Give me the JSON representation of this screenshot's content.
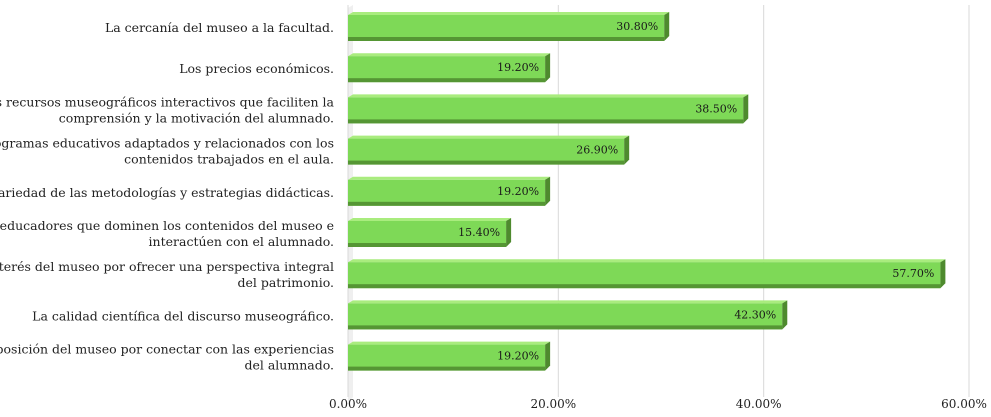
{
  "chart_data": {
    "type": "bar",
    "orientation": "horizontal",
    "title": "",
    "xlabel": "",
    "ylabel": "",
    "xlim": [
      0,
      60
    ],
    "ticks": [
      0,
      20,
      40,
      60
    ],
    "tick_labels": [
      "0.00%",
      "20.00%",
      "40.00%",
      "60.00%"
    ],
    "grid": true,
    "legend": "none",
    "colors": {
      "bar_face": "#7ed957",
      "bar_top": "#a9ec7e",
      "bar_shadow": "#4e8a2e",
      "gridline": "#d9d9d9"
    },
    "categories": [
      [
        "La cercanía del museo a la facultad."
      ],
      [
        "Los precios económicos."
      ],
      [
        "Los recursos museográficos interactivos que faciliten la",
        "comprensión y la motivación del alumnado."
      ],
      [
        "Los programas educativos adaptados y relacionados con los",
        "contenidos trabajados en el aula."
      ],
      [
        "La variedad de las metodologías y estrategias didácticas."
      ],
      [
        "Los educadores que dominen los contenidos del museo e",
        "interactúen con el alumnado."
      ],
      [
        "El interés del museo por ofrecer una perspectiva integral",
        "del patrimonio."
      ],
      [
        "La calidad científica del discurso museográfico."
      ],
      [
        "La disposición del museo por conectar con las experiencias",
        "del alumnado."
      ]
    ],
    "values": [
      30.8,
      19.2,
      38.5,
      26.9,
      19.2,
      15.4,
      57.7,
      42.3,
      19.2
    ],
    "value_labels": [
      "30.80%",
      "19.20%",
      "38.50%",
      "26.90%",
      "19.20%",
      "15.40%",
      "57.70%",
      "42.30%",
      "19.20%"
    ]
  }
}
